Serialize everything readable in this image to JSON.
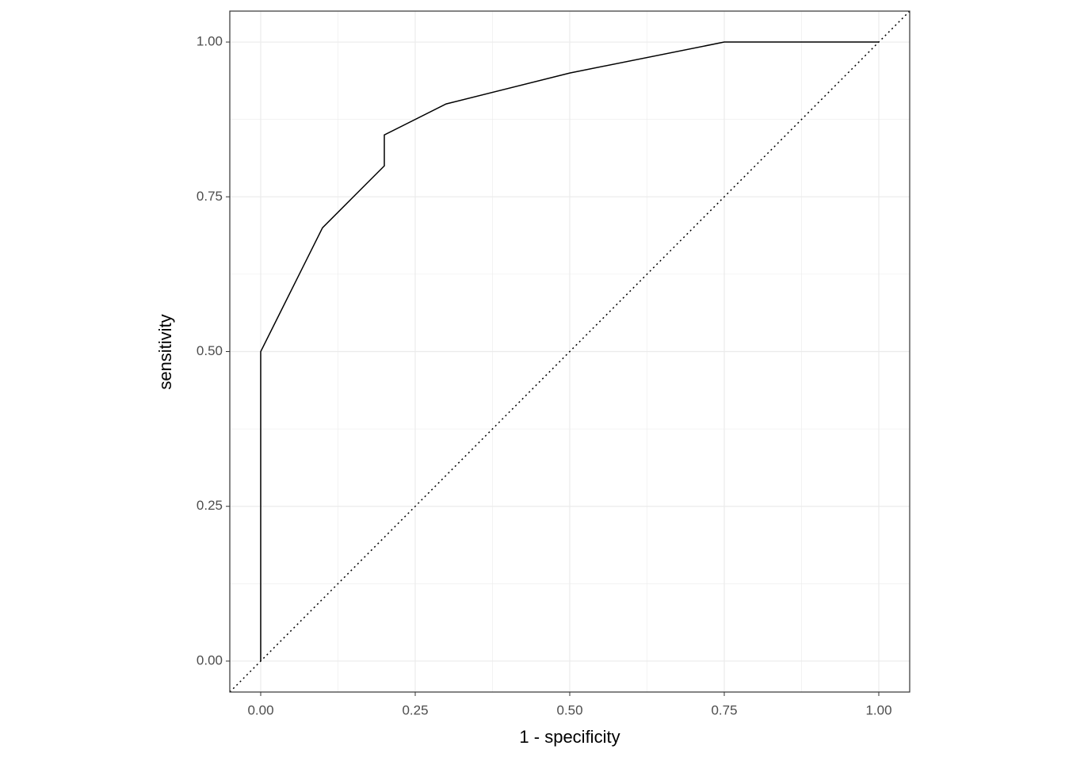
{
  "chart_data": {
    "type": "line",
    "x_label": "1 - specificity",
    "y_label": "sensitivity",
    "series": [
      {
        "color": "#000000",
        "x": [
          0,
          0,
          0.1,
          0.15,
          0.2,
          0.2,
          0.3,
          0.5,
          0.75,
          1
        ],
        "values": [
          0,
          0.5,
          0.7,
          0.75,
          0.8,
          0.85,
          0.9,
          0.95,
          1,
          1
        ]
      }
    ],
    "xlim": [
      -0.05,
      1.05
    ],
    "ylim": [
      -0.05,
      1.05
    ],
    "xticks": [
      {
        "value": 0,
        "label": "0.00"
      },
      0.25,
      {
        "value": 0.5,
        "label": "0.50"
      },
      0.75,
      {
        "value": 1,
        "label": "1.00"
      }
    ],
    "yticks": [
      {
        "value": 0,
        "label": "0.00"
      },
      0.25,
      {
        "value": 0.5,
        "label": "0.50"
      },
      0.75,
      {
        "value": 1,
        "label": "1.00"
      }
    ],
    "grid": true
  }
}
